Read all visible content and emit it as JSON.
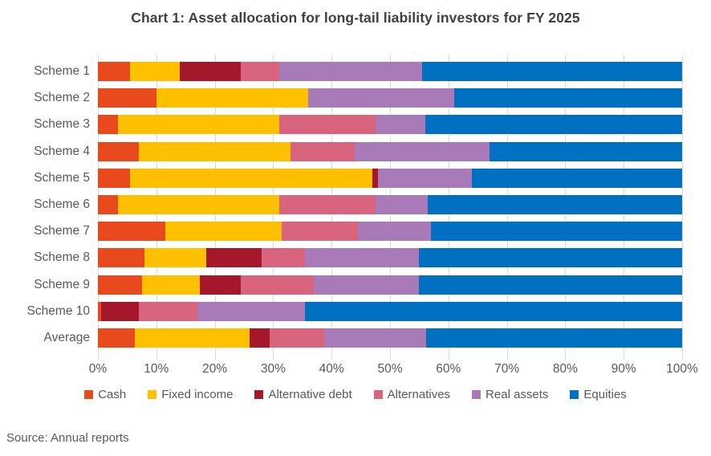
{
  "title": "Chart 1: Asset allocation for long-tail liability investors for FY 2025",
  "source": "Source: Annual reports",
  "chart_data": {
    "type": "bar",
    "variant": "horizontal-stacked",
    "title": "Chart 1: Asset allocation for long-tail liability investors for FY 2025",
    "xlabel": "",
    "ylabel": "",
    "xlim": [
      0,
      100
    ],
    "x_tick_labels": [
      "0%",
      "10%",
      "20%",
      "30%",
      "40%",
      "50%",
      "60%",
      "70%",
      "80%",
      "90%",
      "100%"
    ],
    "grid": true,
    "legend_position": "bottom",
    "categories": [
      "Scheme 1",
      "Scheme 2",
      "Scheme 3",
      "Scheme 4",
      "Scheme 5",
      "Scheme 6",
      "Scheme 7",
      "Scheme 8",
      "Scheme 9",
      "Scheme 10",
      "Average"
    ],
    "series": [
      {
        "name": "Cash",
        "color": "#E8491D",
        "values": [
          5.5,
          10,
          3.5,
          7,
          5.5,
          3.5,
          11.5,
          8,
          7.5,
          0.5,
          6.25
        ]
      },
      {
        "name": "Fixed income",
        "color": "#FFC000",
        "values": [
          8.5,
          26,
          27.5,
          26,
          41.5,
          27.5,
          20,
          10.5,
          10,
          0,
          19.75
        ]
      },
      {
        "name": "Alternative debt",
        "color": "#A5182B",
        "values": [
          10.5,
          0,
          0,
          0,
          1,
          0,
          0,
          9.5,
          7,
          6.5,
          3.45
        ]
      },
      {
        "name": "Alternatives",
        "color": "#D9647E",
        "values": [
          6.5,
          0,
          16.5,
          11,
          0,
          16.5,
          13,
          7.5,
          12.5,
          10,
          9.35
        ]
      },
      {
        "name": "Real assets",
        "color": "#A87AB8",
        "values": [
          24.5,
          25,
          8.5,
          23,
          16,
          9,
          12.5,
          19.5,
          18,
          18.5,
          17.45
        ]
      },
      {
        "name": "Equities",
        "color": "#0070C0",
        "values": [
          44.5,
          39,
          44,
          33,
          36,
          43.5,
          43,
          45,
          45,
          64.5,
          43.75
        ]
      }
    ],
    "colors": {
      "grid": "#D9D9D9",
      "axis_text": "#595959",
      "title_text": "#404040"
    }
  }
}
